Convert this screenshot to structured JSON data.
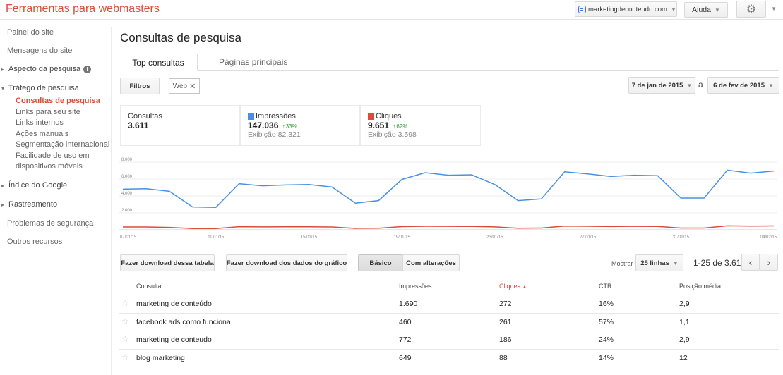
{
  "header": {
    "app_title": "Ferramentas para webmasters",
    "site": "marketingdeconteudo.com",
    "help": "Ajuda"
  },
  "sidebar": {
    "items": [
      {
        "label": "Painel do site",
        "type": "top"
      },
      {
        "label": "Mensagens do site",
        "type": "top"
      },
      {
        "label": "Aspecto da pesquisa",
        "type": "section",
        "expanded": false,
        "info": true
      },
      {
        "label": "Tráfego de pesquisa",
        "type": "section",
        "expanded": true
      },
      {
        "label": "Consultas de pesquisa",
        "type": "sub",
        "active": true
      },
      {
        "label": "Links para seu site",
        "type": "sub"
      },
      {
        "label": "Links internos",
        "type": "sub"
      },
      {
        "label": "Ações manuais",
        "type": "sub"
      },
      {
        "label": "Segmentação internacional",
        "type": "sub"
      },
      {
        "label": "Facilidade de uso em dispositivos móveis",
        "type": "sub"
      },
      {
        "label": "Índice do Google",
        "type": "section",
        "expanded": false
      },
      {
        "label": "Rastreamento",
        "type": "section",
        "expanded": false
      },
      {
        "label": "Problemas de segurança",
        "type": "top"
      },
      {
        "label": "Outros recursos",
        "type": "top"
      }
    ]
  },
  "main": {
    "title": "Consultas de pesquisa",
    "tabs": [
      "Top consultas",
      "Páginas principais"
    ],
    "filters_button": "Filtros",
    "filter_chip": "Web",
    "date_from": "7 de jan de 2015",
    "date_sep": "a",
    "date_to": "6 de fev de 2015",
    "stats": {
      "queries": {
        "label": "Consultas",
        "value": "3.611"
      },
      "impressions": {
        "label": "Impressões",
        "value": "147.036",
        "delta": "33%",
        "display": "Exibição 82.321"
      },
      "clicks": {
        "label": "Cliques",
        "value": "9.651",
        "delta": "62%",
        "display": "Exibição 3.598"
      }
    },
    "buttons": {
      "download_table": "Fazer download dessa tabela",
      "download_chart": "Fazer download dos dados do gráfico",
      "basic": "Básico",
      "changes": "Com alterações"
    },
    "show_label": "Mostrar",
    "rows_select": "25 linhas",
    "range": "1-25 de 3.611",
    "table": {
      "headers": [
        "Consulta",
        "Impressões",
        "Cliques",
        "CTR",
        "Posição média"
      ],
      "sort_arrow": "▲",
      "rows": [
        [
          "marketing de conteúdo",
          "1.690",
          "272",
          "16%",
          "2,9"
        ],
        [
          "facebook ads como funciona",
          "460",
          "261",
          "57%",
          "1,1"
        ],
        [
          "marketing de conteudo",
          "772",
          "186",
          "24%",
          "2,9"
        ],
        [
          "blog marketing",
          "649",
          "88",
          "14%",
          "12"
        ]
      ]
    }
  },
  "colors": {
    "accent": "#dd4b39",
    "impressions": "#4a90e2",
    "clicks": "#dd4b39",
    "positive": "#3a9a3a"
  },
  "chart_data": {
    "type": "line",
    "x": [
      "07/01/15",
      "08/01/15",
      "09/01/15",
      "10/01/15",
      "11/01/15",
      "12/01/15",
      "13/01/15",
      "14/01/15",
      "15/01/15",
      "16/01/15",
      "17/01/15",
      "18/01/15",
      "19/01/15",
      "20/01/15",
      "21/01/15",
      "22/01/15",
      "23/01/15",
      "24/01/15",
      "25/01/15",
      "26/01/15",
      "27/01/15",
      "28/01/15",
      "29/01/15",
      "30/01/15",
      "31/01/15",
      "01/02/15",
      "02/02/15",
      "03/02/15",
      "04/02/15"
    ],
    "x_tick_labels": [
      "07/01/15",
      "11/01/15",
      "15/01/15",
      "19/01/15",
      "23/01/15",
      "27/01/15",
      "31/01/15",
      "04/02/15"
    ],
    "y_tick_labels": [
      "8.000",
      "6.000",
      "4.000",
      "2.000"
    ],
    "ylim": [
      0,
      8500
    ],
    "series": [
      {
        "name": "Impressões",
        "color": "#4a90e2",
        "values": [
          4800,
          4850,
          4550,
          2700,
          2650,
          5450,
          5200,
          5300,
          5350,
          5050,
          3150,
          3450,
          5950,
          6750,
          6450,
          6500,
          5350,
          3450,
          3650,
          6850,
          6600,
          6300,
          6450,
          6400,
          3750,
          3750,
          7050,
          6700,
          6950
        ]
      },
      {
        "name": "Cliques",
        "color": "#dd4b39",
        "values": [
          330,
          330,
          280,
          150,
          150,
          360,
          340,
          350,
          350,
          330,
          170,
          190,
          380,
          420,
          410,
          400,
          340,
          190,
          210,
          440,
          420,
          390,
          410,
          400,
          210,
          210,
          470,
          440,
          460
        ]
      }
    ],
    "grid": true
  }
}
